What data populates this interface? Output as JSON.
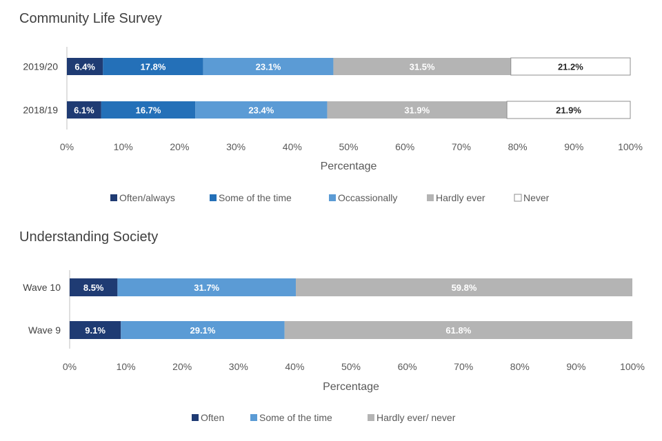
{
  "chart_data": [
    {
      "type": "bar",
      "orientation": "horizontal",
      "stacked": true,
      "title": "Community Life Survey",
      "xlabel": "Percentage",
      "ylabel": "",
      "xlim": [
        0,
        100
      ],
      "xticks": [
        "0%",
        "10%",
        "20%",
        "30%",
        "40%",
        "50%",
        "60%",
        "70%",
        "80%",
        "90%",
        "100%"
      ],
      "categories": [
        "2019/20",
        "2018/19"
      ],
      "series": [
        {
          "name": "Often/always",
          "values": [
            6.4,
            6.1
          ],
          "labels": [
            "6.4%",
            "6.1%"
          ],
          "color": "#1f3b73",
          "label_color": "#ffffff"
        },
        {
          "name": "Some of the time",
          "values": [
            17.8,
            16.7
          ],
          "labels": [
            "17.8%",
            "16.7%"
          ],
          "color": "#2470b8",
          "label_color": "#ffffff"
        },
        {
          "name": "Occassionally",
          "values": [
            23.1,
            23.4
          ],
          "labels": [
            "23.1%",
            "23.4%"
          ],
          "color": "#5b9bd5",
          "label_color": "#ffffff"
        },
        {
          "name": "Hardly ever",
          "values": [
            31.5,
            31.9
          ],
          "labels": [
            "31.5%",
            "31.9%"
          ],
          "color": "#b4b4b4",
          "label_color": "#ffffff"
        },
        {
          "name": "Never",
          "values": [
            21.2,
            21.9
          ],
          "labels": [
            "21.2%",
            "21.9%"
          ],
          "color": "#ffffff",
          "label_color": "#262626"
        }
      ],
      "legend_position": "bottom"
    },
    {
      "type": "bar",
      "orientation": "horizontal",
      "stacked": true,
      "title": "Understanding Society",
      "xlabel": "Percentage",
      "ylabel": "",
      "xlim": [
        0,
        100
      ],
      "xticks": [
        "0%",
        "10%",
        "20%",
        "30%",
        "40%",
        "50%",
        "60%",
        "70%",
        "80%",
        "90%",
        "100%"
      ],
      "categories": [
        "Wave 10",
        "Wave 9"
      ],
      "series": [
        {
          "name": "Often",
          "values": [
            8.5,
            9.1
          ],
          "labels": [
            "8.5%",
            "9.1%"
          ],
          "color": "#1f3b73",
          "label_color": "#ffffff"
        },
        {
          "name": "Some of the time",
          "values": [
            31.7,
            29.1
          ],
          "labels": [
            "31.7%",
            "29.1%"
          ],
          "color": "#5b9bd5",
          "label_color": "#ffffff"
        },
        {
          "name": "Hardly ever/ never",
          "values": [
            59.8,
            61.8
          ],
          "labels": [
            "59.8%",
            "61.8%"
          ],
          "color": "#b4b4b4",
          "label_color": "#ffffff"
        }
      ],
      "legend_position": "bottom"
    }
  ]
}
